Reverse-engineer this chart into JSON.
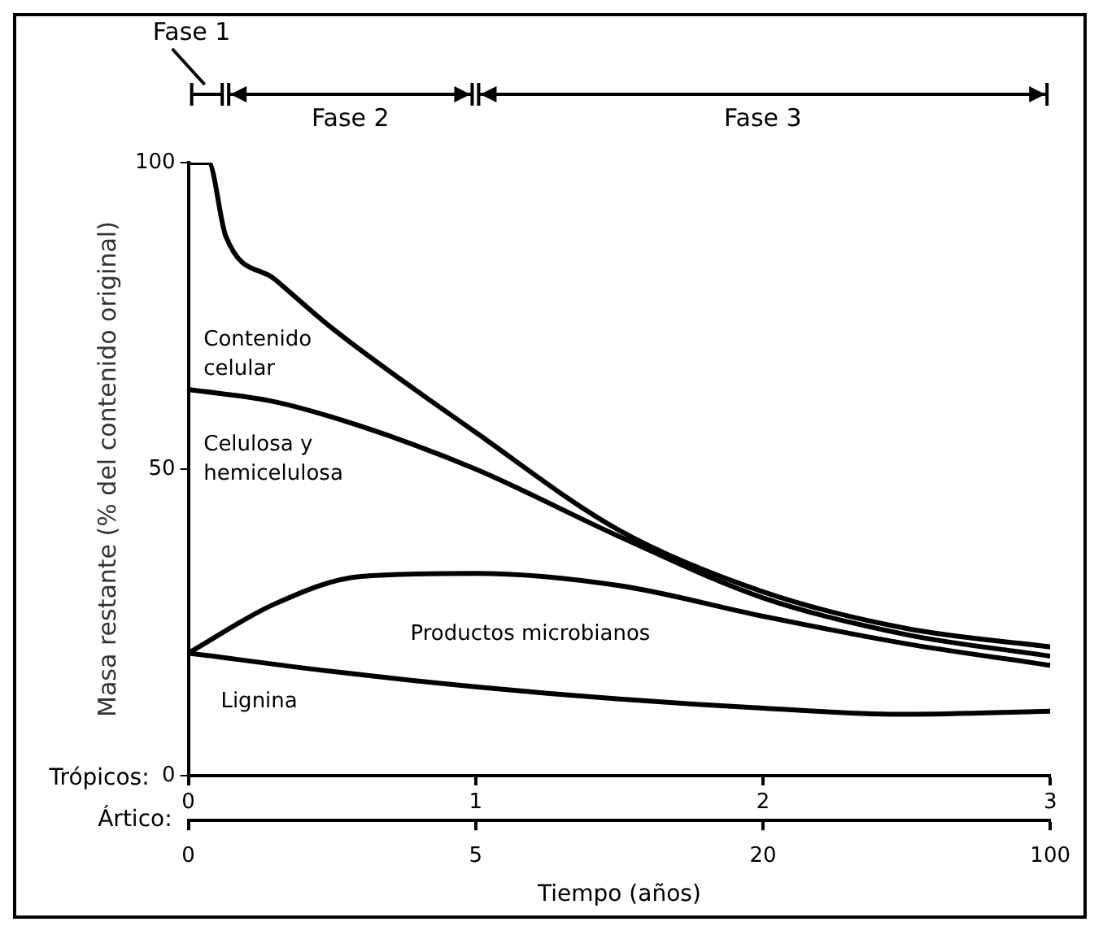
{
  "chart_data": {
    "type": "line",
    "ylabel": "Masa restante (% del contenido original)",
    "xlabel": "Tiempo (años)",
    "xlim": [
      0,
      3
    ],
    "xticks": [
      0,
      1,
      2,
      3
    ],
    "ylim": [
      0,
      100
    ],
    "yticks": [
      0,
      50,
      100
    ],
    "grid": false,
    "legend": false,
    "marker": "none",
    "line_style": "solid",
    "series": [
      {
        "name": "Contenido celular",
        "color": "#000000",
        "x": [
          0,
          0.07,
          0.13,
          0.3,
          0.5,
          1,
          1.5,
          2,
          2.5,
          3
        ],
        "values": [
          100,
          100,
          88,
          81,
          73,
          56,
          40,
          30,
          24,
          21
        ]
      },
      {
        "name": "Celulosa y hemicelulosa",
        "color": "#000000",
        "x": [
          0,
          0.3,
          0.6,
          1,
          1.5,
          2,
          2.5,
          3
        ],
        "values": [
          63,
          61,
          57,
          50,
          39,
          29,
          23,
          19.5
        ]
      },
      {
        "name": "Productos microbianos",
        "color": "#000000",
        "x": [
          0,
          0.3,
          0.6,
          1,
          1.5,
          2,
          2.5,
          3
        ],
        "values": [
          20,
          28,
          32.5,
          33,
          31,
          26,
          21.5,
          18
        ]
      },
      {
        "name": "Lignina",
        "color": "#000000",
        "x": [
          0,
          0.5,
          1,
          1.5,
          2,
          2.5,
          3
        ],
        "values": [
          20,
          17,
          14.5,
          12.5,
          11,
          10,
          10.5
        ]
      }
    ],
    "annotations": [
      "Fase 1",
      "Fase 2",
      "Fase 3",
      "Trópicos:",
      "Ártico:",
      "0",
      "5",
      "20",
      "100"
    ]
  }
}
